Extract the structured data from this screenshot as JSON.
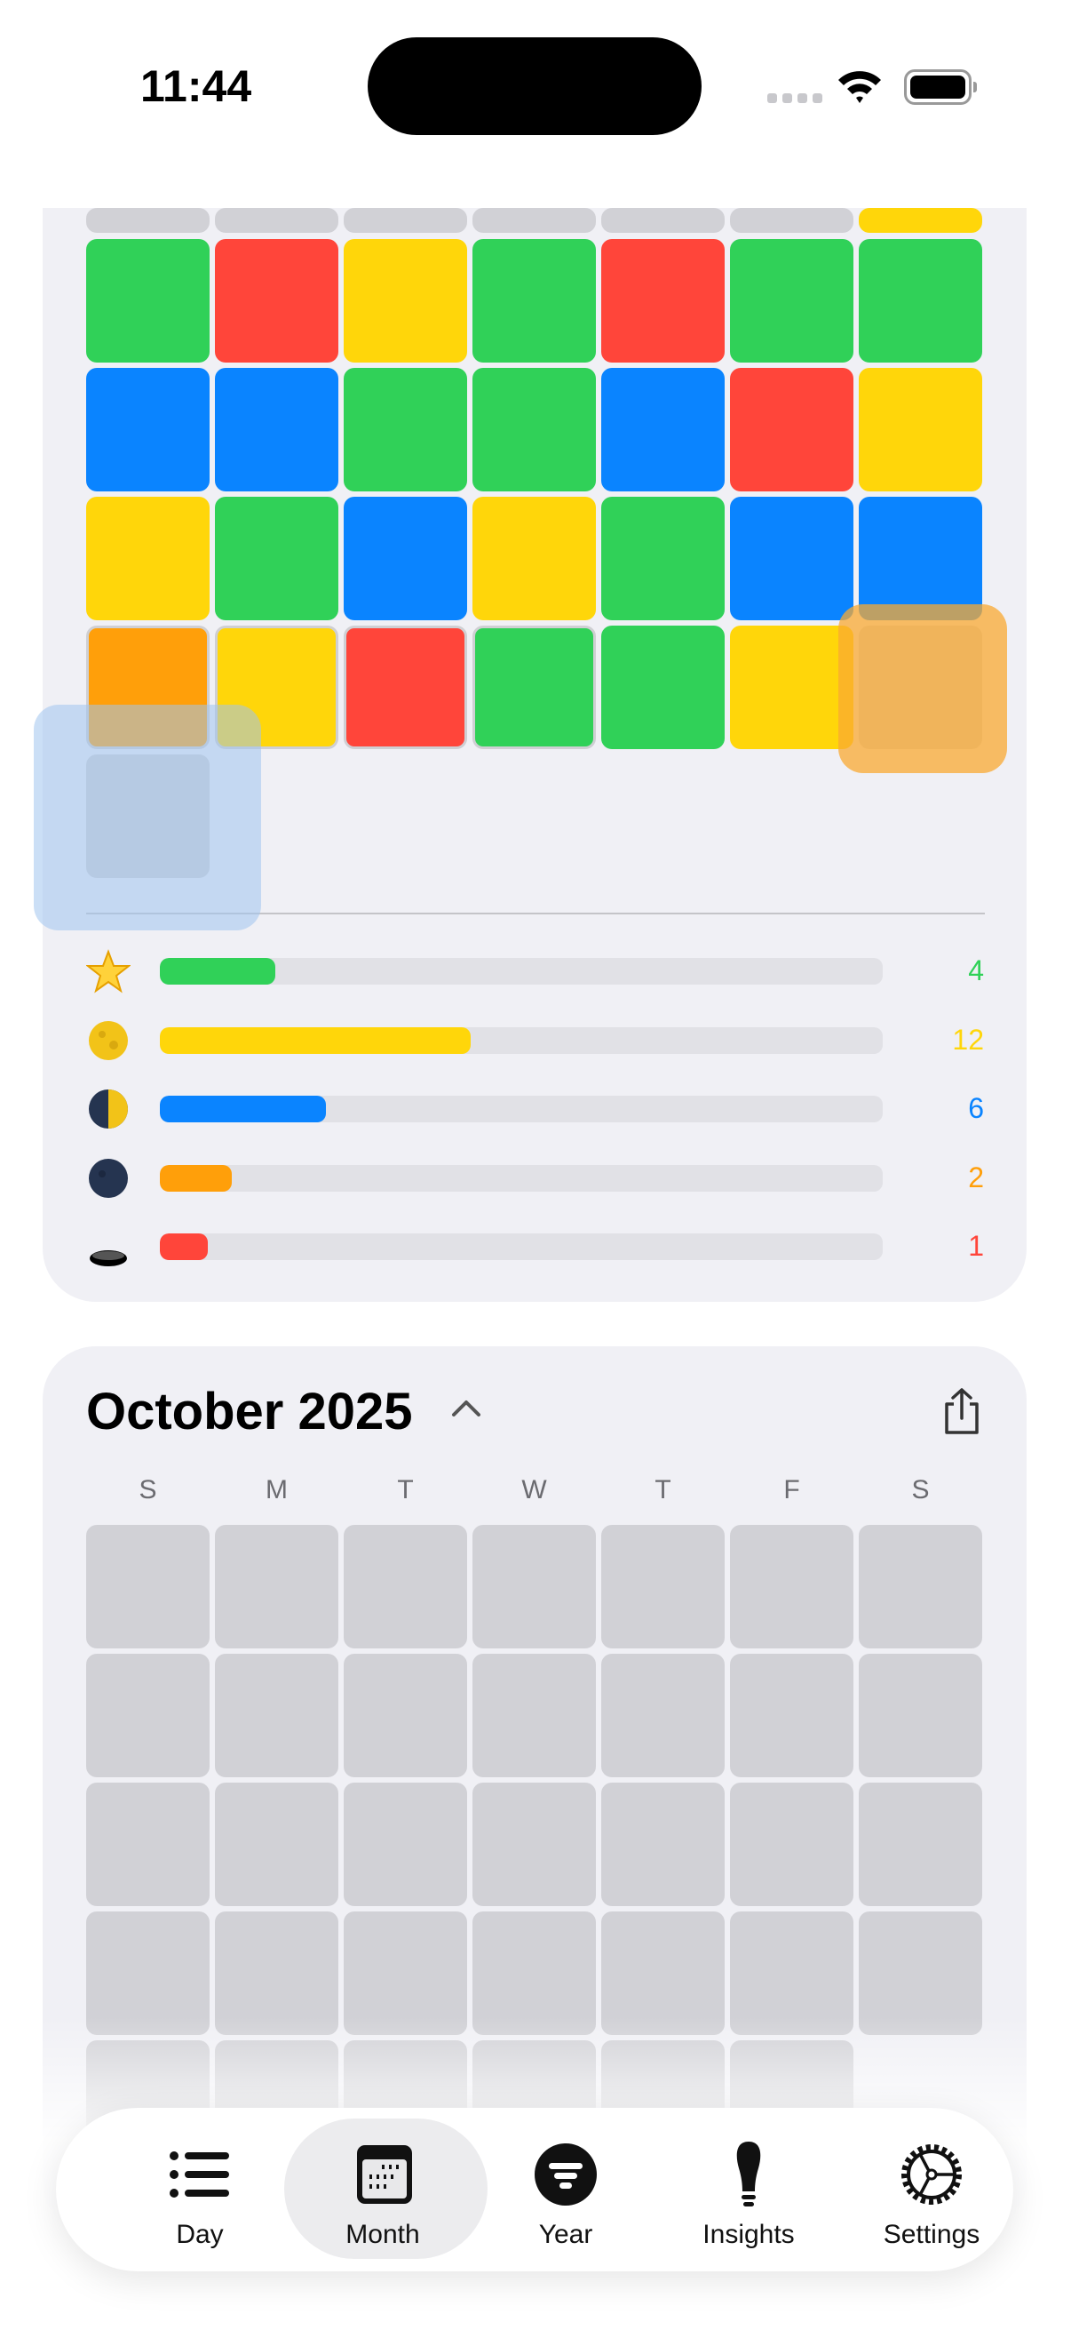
{
  "status_bar": {
    "time": "11:44"
  },
  "colors": {
    "green": "#30D158",
    "red": "#FF453A",
    "yellow": "#FFD60A",
    "blue": "#0A84FF",
    "orange": "#FF9F0A",
    "empty": "#D1D1D6"
  },
  "previous_month": {
    "partial_row": [
      "empty",
      "empty",
      "empty",
      "empty",
      "empty",
      "empty",
      "yellow"
    ],
    "rows": [
      [
        "green",
        "red",
        "yellow",
        "green",
        "red",
        "green",
        "green"
      ],
      [
        "blue",
        "blue",
        "green",
        "green",
        "blue",
        "red",
        "yellow"
      ],
      [
        "yellow",
        "green",
        "blue",
        "yellow",
        "green",
        "blue",
        "blue"
      ],
      [
        "orange",
        "yellow",
        "red",
        "green",
        "green",
        "yellow",
        "empty"
      ],
      [
        "empty"
      ]
    ],
    "stats": [
      {
        "icon": "star-emoji-icon",
        "color": "green",
        "count": "4",
        "fraction": 0.16
      },
      {
        "icon": "full-moon-emoji-icon",
        "color": "yellow",
        "count": "12",
        "fraction": 0.43
      },
      {
        "icon": "last-quarter-moon-emoji-icon",
        "color": "blue",
        "count": "6",
        "fraction": 0.23
      },
      {
        "icon": "new-moon-emoji-icon",
        "color": "orange",
        "count": "2",
        "fraction": 0.1
      },
      {
        "icon": "hole-emoji-icon",
        "color": "red",
        "count": "1",
        "fraction": 0.066
      }
    ]
  },
  "current_month": {
    "title": "October 2025",
    "weekdays": [
      "S",
      "M",
      "T",
      "W",
      "T",
      "F",
      "S"
    ],
    "row_lengths": [
      7,
      7,
      7,
      7,
      6
    ]
  },
  "tabs": [
    {
      "label": "Day",
      "icon": "list-bullet-icon"
    },
    {
      "label": "Month",
      "icon": "calendar-icon",
      "active": true
    },
    {
      "label": "Year",
      "icon": "filter-circle-icon"
    },
    {
      "label": "Insights",
      "icon": "lightbulb-icon"
    },
    {
      "label": "Settings",
      "icon": "gear-icon"
    }
  ]
}
